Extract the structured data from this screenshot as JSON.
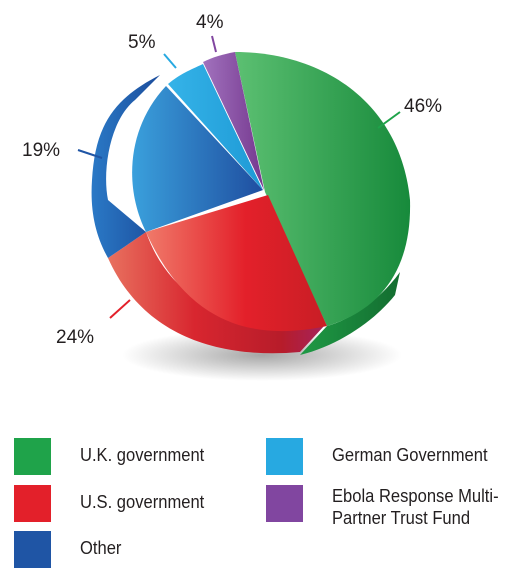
{
  "chart_data": {
    "type": "pie",
    "slices": [
      {
        "label": "U.K. government",
        "value": 46,
        "value_label": "46%",
        "color": "#1fa34a"
      },
      {
        "label": "U.S. government",
        "value": 24,
        "value_label": "24%",
        "color": "#e3202a"
      },
      {
        "label": "Other",
        "value": 19,
        "value_label": "19%",
        "color": "#1f55a5"
      },
      {
        "label": "German Government",
        "value": 5,
        "value_label": "5%",
        "color": "#27a9e1"
      },
      {
        "label": "Ebola Response Multi-Partner Trust Fund",
        "value": 4,
        "value_label": "4%",
        "color": "#8146a0"
      }
    ],
    "style": "3d-exploded",
    "legend_position": "bottom"
  },
  "legend": {
    "items": [
      {
        "label": "U.K. government",
        "color": "#1fa34a"
      },
      {
        "label": "U.S. government",
        "color": "#e3202a"
      },
      {
        "label": "Other",
        "color": "#1f55a5"
      },
      {
        "label": "German Government",
        "color": "#27a9e1"
      },
      {
        "label": "Ebola Response Multi-\nPartner Trust Fund",
        "color": "#8146a0"
      }
    ]
  }
}
